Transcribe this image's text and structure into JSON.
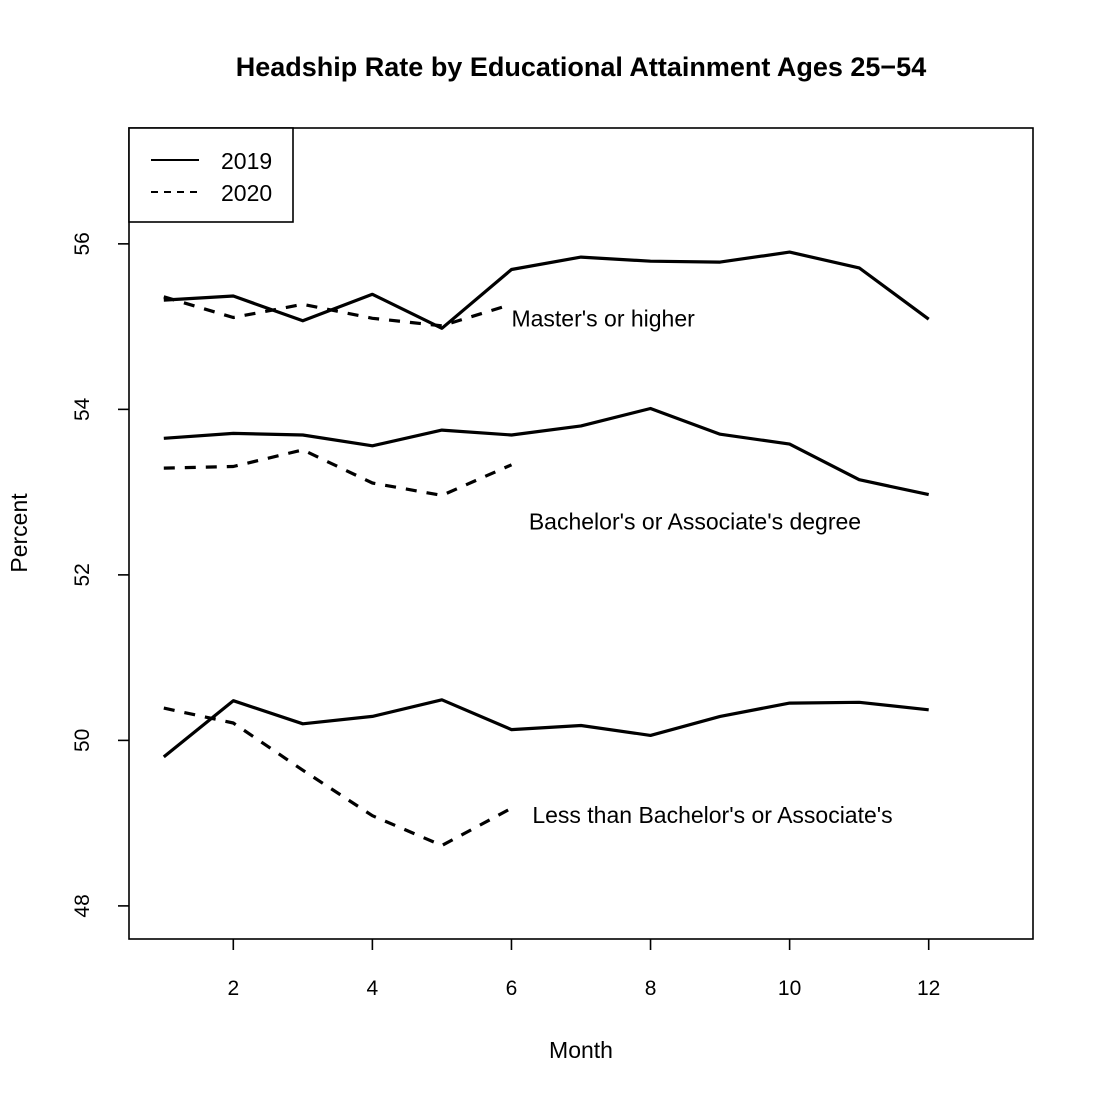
{
  "chart_data": {
    "type": "line",
    "title": "Headship Rate by Educational Attainment Ages 25−54",
    "xlabel": "Month",
    "ylabel": "Percent",
    "xlim": [
      0.5,
      13.5
    ],
    "ylim": [
      47.6,
      57.4
    ],
    "xticks": [
      2,
      4,
      6,
      8,
      10,
      12
    ],
    "yticks": [
      48,
      50,
      52,
      54,
      56
    ],
    "grid": false,
    "legend": {
      "position": "top-left",
      "entries": [
        {
          "label": "2019",
          "linestyle": "solid"
        },
        {
          "label": "2020",
          "linestyle": "dashed"
        }
      ]
    },
    "series": [
      {
        "group": "Master's or higher",
        "year": "2019",
        "linestyle": "solid",
        "x": [
          1,
          2,
          3,
          4,
          5,
          6,
          7,
          8,
          9,
          10,
          11,
          12
        ],
        "y": [
          55.32,
          55.37,
          55.07,
          55.39,
          54.98,
          55.69,
          55.84,
          55.79,
          55.78,
          55.9,
          55.71,
          55.09
        ]
      },
      {
        "group": "Master's or higher",
        "year": "2020",
        "linestyle": "dashed",
        "x": [
          1,
          2,
          3,
          4,
          5,
          6
        ],
        "y": [
          55.36,
          55.11,
          55.27,
          55.1,
          55.01,
          55.27
        ]
      },
      {
        "group": "Bachelor's or Associate's degree",
        "year": "2019",
        "linestyle": "solid",
        "x": [
          1,
          2,
          3,
          4,
          5,
          6,
          7,
          8,
          9,
          10,
          11,
          12
        ],
        "y": [
          53.65,
          53.71,
          53.69,
          53.56,
          53.75,
          53.69,
          53.8,
          54.01,
          53.7,
          53.58,
          53.15,
          52.97
        ]
      },
      {
        "group": "Bachelor's or Associate's degree",
        "year": "2020",
        "linestyle": "dashed",
        "x": [
          1,
          2,
          3,
          4,
          5,
          6
        ],
        "y": [
          53.29,
          53.31,
          53.51,
          53.11,
          52.96,
          53.33
        ]
      },
      {
        "group": "Less than Bachelor's or Associate's",
        "year": "2019",
        "linestyle": "solid",
        "x": [
          1,
          2,
          3,
          4,
          5,
          6,
          7,
          8,
          9,
          10,
          11,
          12
        ],
        "y": [
          49.8,
          50.48,
          50.2,
          50.29,
          50.49,
          50.13,
          50.18,
          50.06,
          50.29,
          50.45,
          50.46,
          50.37
        ]
      },
      {
        "group": "Less than Bachelor's or Associate's",
        "year": "2020",
        "linestyle": "dashed",
        "x": [
          1,
          2,
          3,
          4,
          5,
          6
        ],
        "y": [
          50.39,
          50.21,
          49.64,
          49.09,
          48.73,
          49.18
        ]
      }
    ],
    "annotations": [
      {
        "text": "Master's or higher",
        "x": 6.0,
        "y": 55.0
      },
      {
        "text": "Bachelor's or Associate's degree",
        "x": 6.25,
        "y": 52.55
      },
      {
        "text": "Less than Bachelor's or Associate's",
        "x": 6.3,
        "y": 49.0
      }
    ]
  }
}
